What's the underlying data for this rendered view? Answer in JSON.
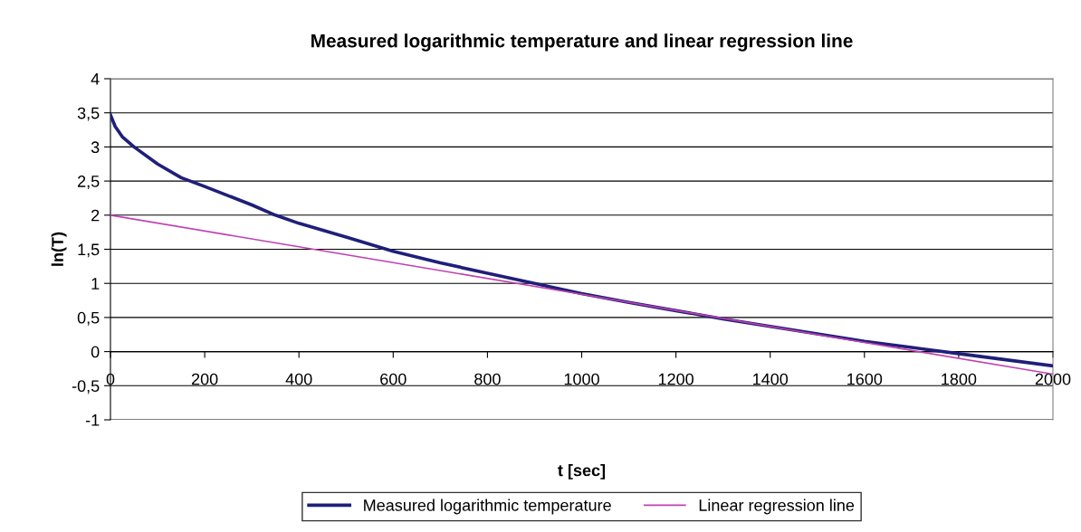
{
  "chart_data": {
    "type": "line",
    "title": "Measured logarithmic temperature and linear regression line",
    "xlabel": "t [sec]",
    "ylabel": "ln(T)",
    "series": [
      {
        "name": "Measured logarithmic temperature",
        "color": "#1f1f7a",
        "x": [
          0,
          10,
          25,
          50,
          100,
          150,
          200,
          300,
          350,
          400,
          500,
          600,
          700,
          800,
          900,
          1000,
          1100,
          1200,
          1300,
          1400,
          1500,
          1600,
          1700,
          1800,
          1900,
          2000
        ],
        "values": [
          3.47,
          3.3,
          3.15,
          3.0,
          2.75,
          2.55,
          2.42,
          2.15,
          2.0,
          1.88,
          1.68,
          1.47,
          1.3,
          1.15,
          1.0,
          0.85,
          0.72,
          0.6,
          0.48,
          0.37,
          0.26,
          0.15,
          0.06,
          -0.03,
          -0.12,
          -0.21
        ]
      },
      {
        "name": "Linear regression line",
        "color": "#c040b0",
        "x": [
          0,
          500,
          1000,
          1500,
          2000
        ],
        "values": [
          2.0,
          1.42,
          0.84,
          0.25,
          -0.33
        ]
      }
    ],
    "xlim": [
      0,
      2000
    ],
    "xticks": [
      0,
      200,
      400,
      600,
      800,
      1000,
      1200,
      1400,
      1600,
      1800,
      2000
    ],
    "ylim": [
      -1,
      4
    ],
    "yticks": [
      -1,
      {
        "value": -0.5,
        "label": "-0,5"
      },
      0,
      {
        "value": 0.5,
        "label": "0,5"
      },
      1,
      {
        "value": 1.5,
        "label": "1,5"
      },
      2,
      {
        "value": 2.5,
        "label": "2,5"
      },
      3,
      {
        "value": 3.5,
        "label": "3,5"
      },
      4
    ],
    "grid": "y",
    "legend": "bottom",
    "marker": "none",
    "line_style": "solid"
  }
}
